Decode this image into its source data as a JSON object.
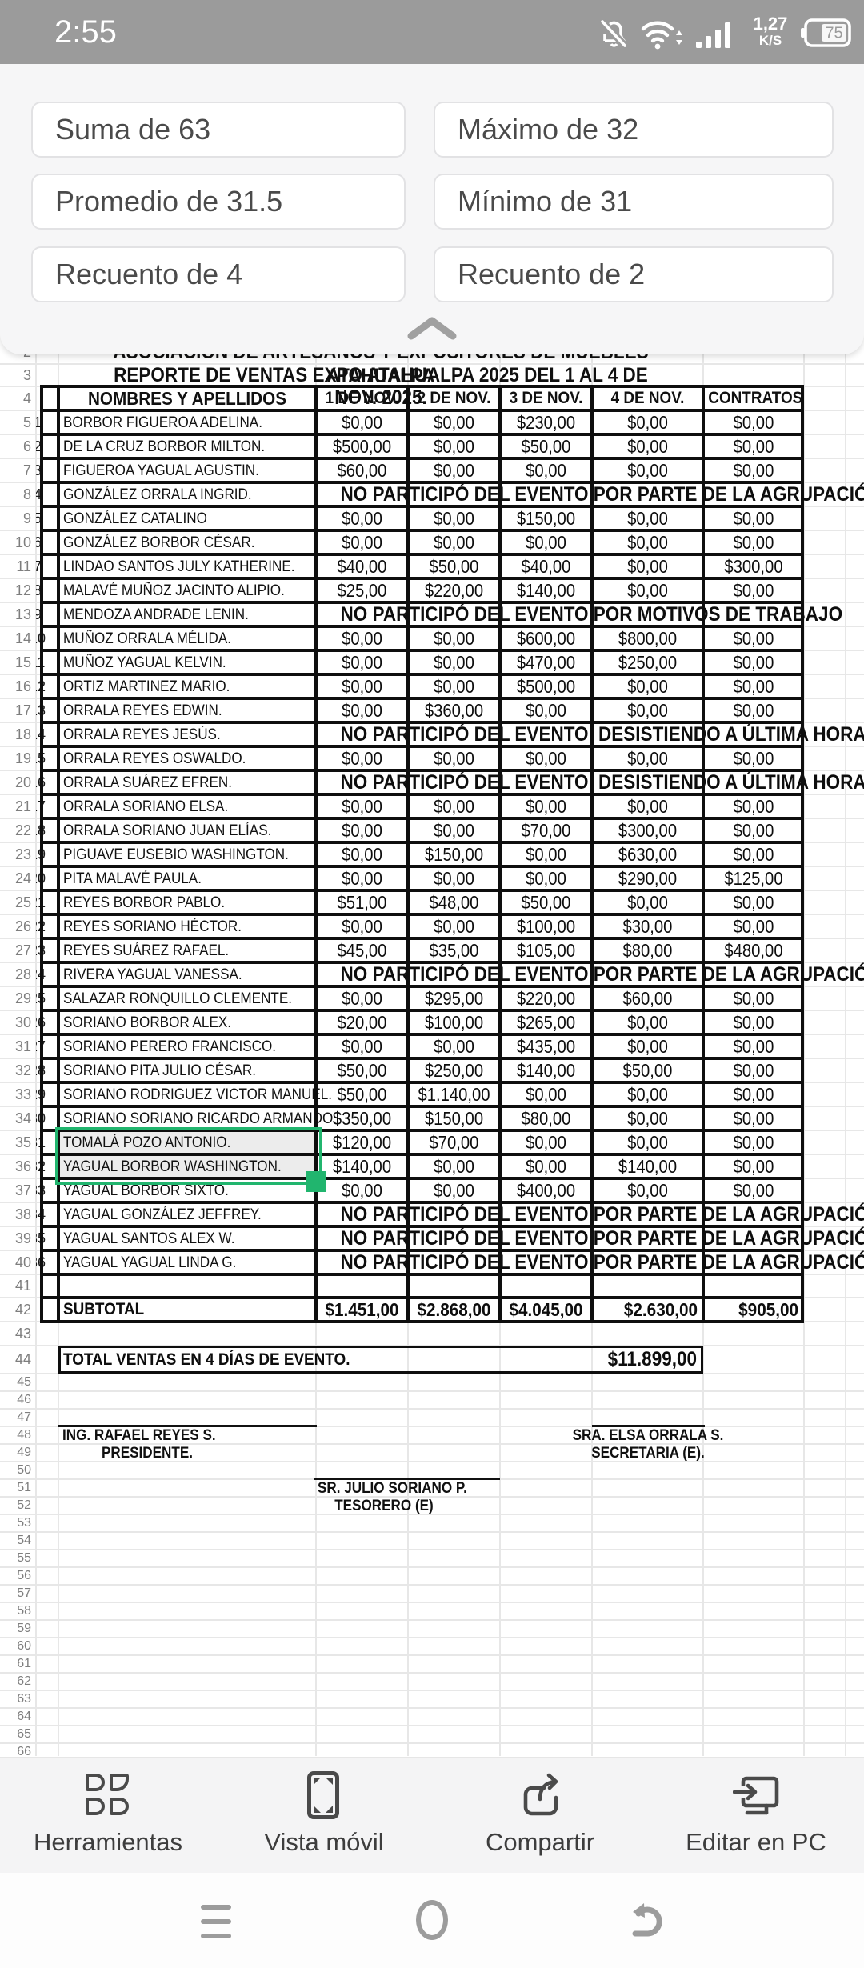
{
  "status_bar": {
    "time": "2:55",
    "net_speed_value": "1,27",
    "net_speed_unit": "K/S",
    "battery_percent": "75",
    "icons": [
      "notifications-off-icon",
      "wifi-icon",
      "signal-icon",
      "battery-icon"
    ]
  },
  "summary_panel": {
    "chips": [
      {
        "label": "Suma de 63"
      },
      {
        "label": "Máximo de 32"
      },
      {
        "label": "Promedio de 31.5"
      },
      {
        "label": "Mínimo de 31"
      },
      {
        "label": "Recuento de 4"
      },
      {
        "label": "Recuento de 2"
      }
    ]
  },
  "sheet": {
    "titles": {
      "line1": "ASOCIACIÓN DE ARTESANOS Y EXPOSITORES DE MUEBLES ATAHUALPA",
      "line2": "REPORTE DE VENTAS EXPO ATAHUALPA 2025 DEL 1 AL 4 DE NOV. 2025."
    },
    "headers": [
      "NOMBRES Y APELLIDOS",
      "1 DE NOV.",
      "2 DE NOV.",
      "3 DE NOV.",
      "4 DE NOV.",
      "CONTRATOS"
    ],
    "rows": [
      {
        "n": 1,
        "name": "BORBOR FIGUEROA ADELINA.",
        "values": [
          "$0,00",
          "$0,00",
          "$230,00",
          "$0,00",
          "$0,00"
        ]
      },
      {
        "n": 2,
        "name": "DE LA CRUZ BORBOR MILTON.",
        "values": [
          "$500,00",
          "$0,00",
          "$50,00",
          "$0,00",
          "$0,00"
        ]
      },
      {
        "n": 3,
        "name": "FIGUEROA YAGUAL AGUSTIN.",
        "values": [
          "$60,00",
          "$0,00",
          "$0,00",
          "$0,00",
          "$0,00"
        ]
      },
      {
        "n": 4,
        "name": "GONZÁLEZ  ORRALA INGRID.",
        "note": "NO PARTICIPÓ DEL EVENTO POR PARTE DE LA AGRUPACIÓN"
      },
      {
        "n": 5,
        "name": "GONZÁLEZ CATALINO",
        "values": [
          "$0,00",
          "$0,00",
          "$150,00",
          "$0,00",
          "$0,00"
        ]
      },
      {
        "n": 6,
        "name": "GONZÁLEZ BORBOR CÉSAR.",
        "values": [
          "$0,00",
          "$0,00",
          "$0,00",
          "$0,00",
          "$0,00"
        ]
      },
      {
        "n": 7,
        "name": "LINDAO SANTOS JULY KATHERINE.",
        "values": [
          "$40,00",
          "$50,00",
          "$40,00",
          "$0,00",
          "$300,00"
        ]
      },
      {
        "n": 8,
        "name": "MALAVÉ MUÑOZ JACINTO ALIPIO.",
        "values": [
          "$25,00",
          "$220,00",
          "$140,00",
          "$0,00",
          "$0,00"
        ]
      },
      {
        "n": 9,
        "name": "MENDOZA ANDRADE LENIN.",
        "note": "NO PARTICIPÓ DEL EVENTO POR MOTIVOS DE TRABAJO"
      },
      {
        "n": 10,
        "name": "MUÑOZ ORRALA MÉLIDA.",
        "values": [
          "$0,00",
          "$0,00",
          "$600,00",
          "$800,00",
          "$0,00"
        ]
      },
      {
        "n": 11,
        "name": "MUÑOZ YAGUAL KELVIN.",
        "values": [
          "$0,00",
          "$0,00",
          "$470,00",
          "$250,00",
          "$0,00"
        ]
      },
      {
        "n": 12,
        "name": "ORTIZ MARTINEZ MARIO.",
        "values": [
          "$0,00",
          "$0,00",
          "$500,00",
          "$0,00",
          "$0,00"
        ]
      },
      {
        "n": 13,
        "name": "ORRALA REYES EDWIN.",
        "values": [
          "$0,00",
          "$360,00",
          "$0,00",
          "$0,00",
          "$0,00"
        ]
      },
      {
        "n": 14,
        "name": "ORRALA REYES JESÚS.",
        "note": "NO PARTICIPÓ DEL EVENTO, DESISTIENDO A ÚLTIMA HORA"
      },
      {
        "n": 15,
        "name": "ORRALA REYES OSWALDO.",
        "values": [
          "$0,00",
          "$0,00",
          "$0,00",
          "$0,00",
          "$0,00"
        ]
      },
      {
        "n": 16,
        "name": "ORRALA SUÁREZ EFREN.",
        "note": "NO PARTICIPÓ DEL EVENTO, DESISTIENDO A ÚLTIMA HORA"
      },
      {
        "n": 17,
        "name": "ORRALA SORIANO ELSA.",
        "values": [
          "$0,00",
          "$0,00",
          "$0,00",
          "$0,00",
          "$0,00"
        ]
      },
      {
        "n": 18,
        "name": "ORRALA SORIANO JUAN ELÍAS.",
        "values": [
          "$0,00",
          "$0,00",
          "$70,00",
          "$300,00",
          "$0,00"
        ]
      },
      {
        "n": 19,
        "name": "PIGUAVE EUSEBIO WASHINGTON.",
        "values": [
          "$0,00",
          "$150,00",
          "$0,00",
          "$630,00",
          "$0,00"
        ]
      },
      {
        "n": 20,
        "name": "PITA MALAVÉ PAULA.",
        "values": [
          "$0,00",
          "$0,00",
          "$0,00",
          "$290,00",
          "$125,00"
        ]
      },
      {
        "n": 21,
        "name": "REYES BORBOR PABLO.",
        "values": [
          "$51,00",
          "$48,00",
          "$50,00",
          "$0,00",
          "$0,00"
        ]
      },
      {
        "n": 22,
        "name": "REYES SORIANO HÉCTOR.",
        "values": [
          "$0,00",
          "$0,00",
          "$100,00",
          "$30,00",
          "$0,00"
        ]
      },
      {
        "n": 23,
        "name": "REYES SUÁREZ RAFAEL.",
        "values": [
          "$45,00",
          "$35,00",
          "$105,00",
          "$80,00",
          "$480,00"
        ]
      },
      {
        "n": 24,
        "name": "RIVERA YAGUAL VANESSA.",
        "note": "NO PARTICIPÓ DEL EVENTO POR PARTE DE LA AGRUPACIÓN"
      },
      {
        "n": 25,
        "name": "SALAZAR RONQUILLO CLEMENTE.",
        "values": [
          "$0,00",
          "$295,00",
          "$220,00",
          "$60,00",
          "$0,00"
        ]
      },
      {
        "n": 26,
        "name": "SORIANO BORBOR ALEX.",
        "values": [
          "$20,00",
          "$100,00",
          "$265,00",
          "$0,00",
          "$0,00"
        ]
      },
      {
        "n": 27,
        "name": "SORIANO PERERO FRANCISCO.",
        "values": [
          "$0,00",
          "$0,00",
          "$435,00",
          "$0,00",
          "$0,00"
        ]
      },
      {
        "n": 28,
        "name": "SORIANO PITA JULIO CÉSAR.",
        "values": [
          "$50,00",
          "$250,00",
          "$140,00",
          "$50,00",
          "$0,00"
        ]
      },
      {
        "n": 29,
        "name": "SORIANO RODRIGUEZ VICTOR MANUEL.",
        "values": [
          "$50,00",
          "$1.140,00",
          "$0,00",
          "$0,00",
          "$0,00"
        ]
      },
      {
        "n": 30,
        "name": "SORIANO SORIANO RICARDO ARMANDO.",
        "values": [
          "$350,00",
          "$150,00",
          "$80,00",
          "$0,00",
          "$0,00"
        ]
      },
      {
        "n": 31,
        "name": "TOMALÁ POZO ANTONIO.",
        "values": [
          "$120,00",
          "$70,00",
          "$0,00",
          "$0,00",
          "$0,00"
        ],
        "selected": true
      },
      {
        "n": 32,
        "name": "YAGUAL BORBOR WASHINGTON.",
        "values": [
          "$140,00",
          "$0,00",
          "$0,00",
          "$140,00",
          "$0,00"
        ],
        "selected": true
      },
      {
        "n": 33,
        "name": "YAGUAL BORBOR SIXTO.",
        "values": [
          "$0,00",
          "$0,00",
          "$400,00",
          "$0,00",
          "$0,00"
        ]
      },
      {
        "n": 34,
        "name": "YAGUAL GONZÁLEZ JEFFREY.",
        "note": "NO PARTICIPÓ DEL EVENTO POR PARTE DE LA AGRUPACIÓN"
      },
      {
        "n": 35,
        "name": "YAGUAL SANTOS ALEX W.",
        "note": "NO PARTICIPÓ DEL EVENTO POR PARTE DE LA AGRUPACIÓN"
      },
      {
        "n": 36,
        "name": "YAGUAL YAGUAL LINDA G.",
        "note": "NO PARTICIPÓ DEL EVENTO POR PARTE DE LA AGRUPACIÓN"
      }
    ],
    "subtotal": {
      "label": "SUBTOTAL",
      "values": [
        "$1.451,00",
        "$2.868,00",
        "$4.045,00",
        "$2.630,00",
        "$905,00"
      ]
    },
    "total": {
      "label": "TOTAL VENTAS EN 4 DÍAS DE EVENTO.",
      "value": "$11.899,00"
    },
    "signatures": [
      {
        "name": "ING. RAFAEL REYES S.",
        "role": "PRESIDENTE."
      },
      {
        "name": "SRA. ELSA ORRALA S.",
        "role": "SECRETARIA (E)."
      },
      {
        "name": "SR. JULIO SORIANO P.",
        "role": "TESORERO (E)"
      }
    ],
    "selection": {
      "rows": [
        35,
        36
      ],
      "column": "NOMBRES Y APELLIDOS"
    },
    "colors": {
      "selection_green": "#21b56e",
      "grid_line": "#e7e7e7",
      "table_border": "#0e0e0e"
    }
  },
  "toolbar": {
    "items": [
      {
        "icon": "tools-grid-icon",
        "label": "Herramientas"
      },
      {
        "icon": "phone-fullscreen-icon",
        "label": "Vista móvil"
      },
      {
        "icon": "share-arrow-icon",
        "label": "Compartir"
      },
      {
        "icon": "edit-on-pc-icon",
        "label": "Editar en PC"
      }
    ]
  },
  "nav_bar": {
    "items": [
      {
        "icon": "menu-icon"
      },
      {
        "icon": "home-circle-icon"
      },
      {
        "icon": "back-arrow-icon"
      }
    ]
  }
}
